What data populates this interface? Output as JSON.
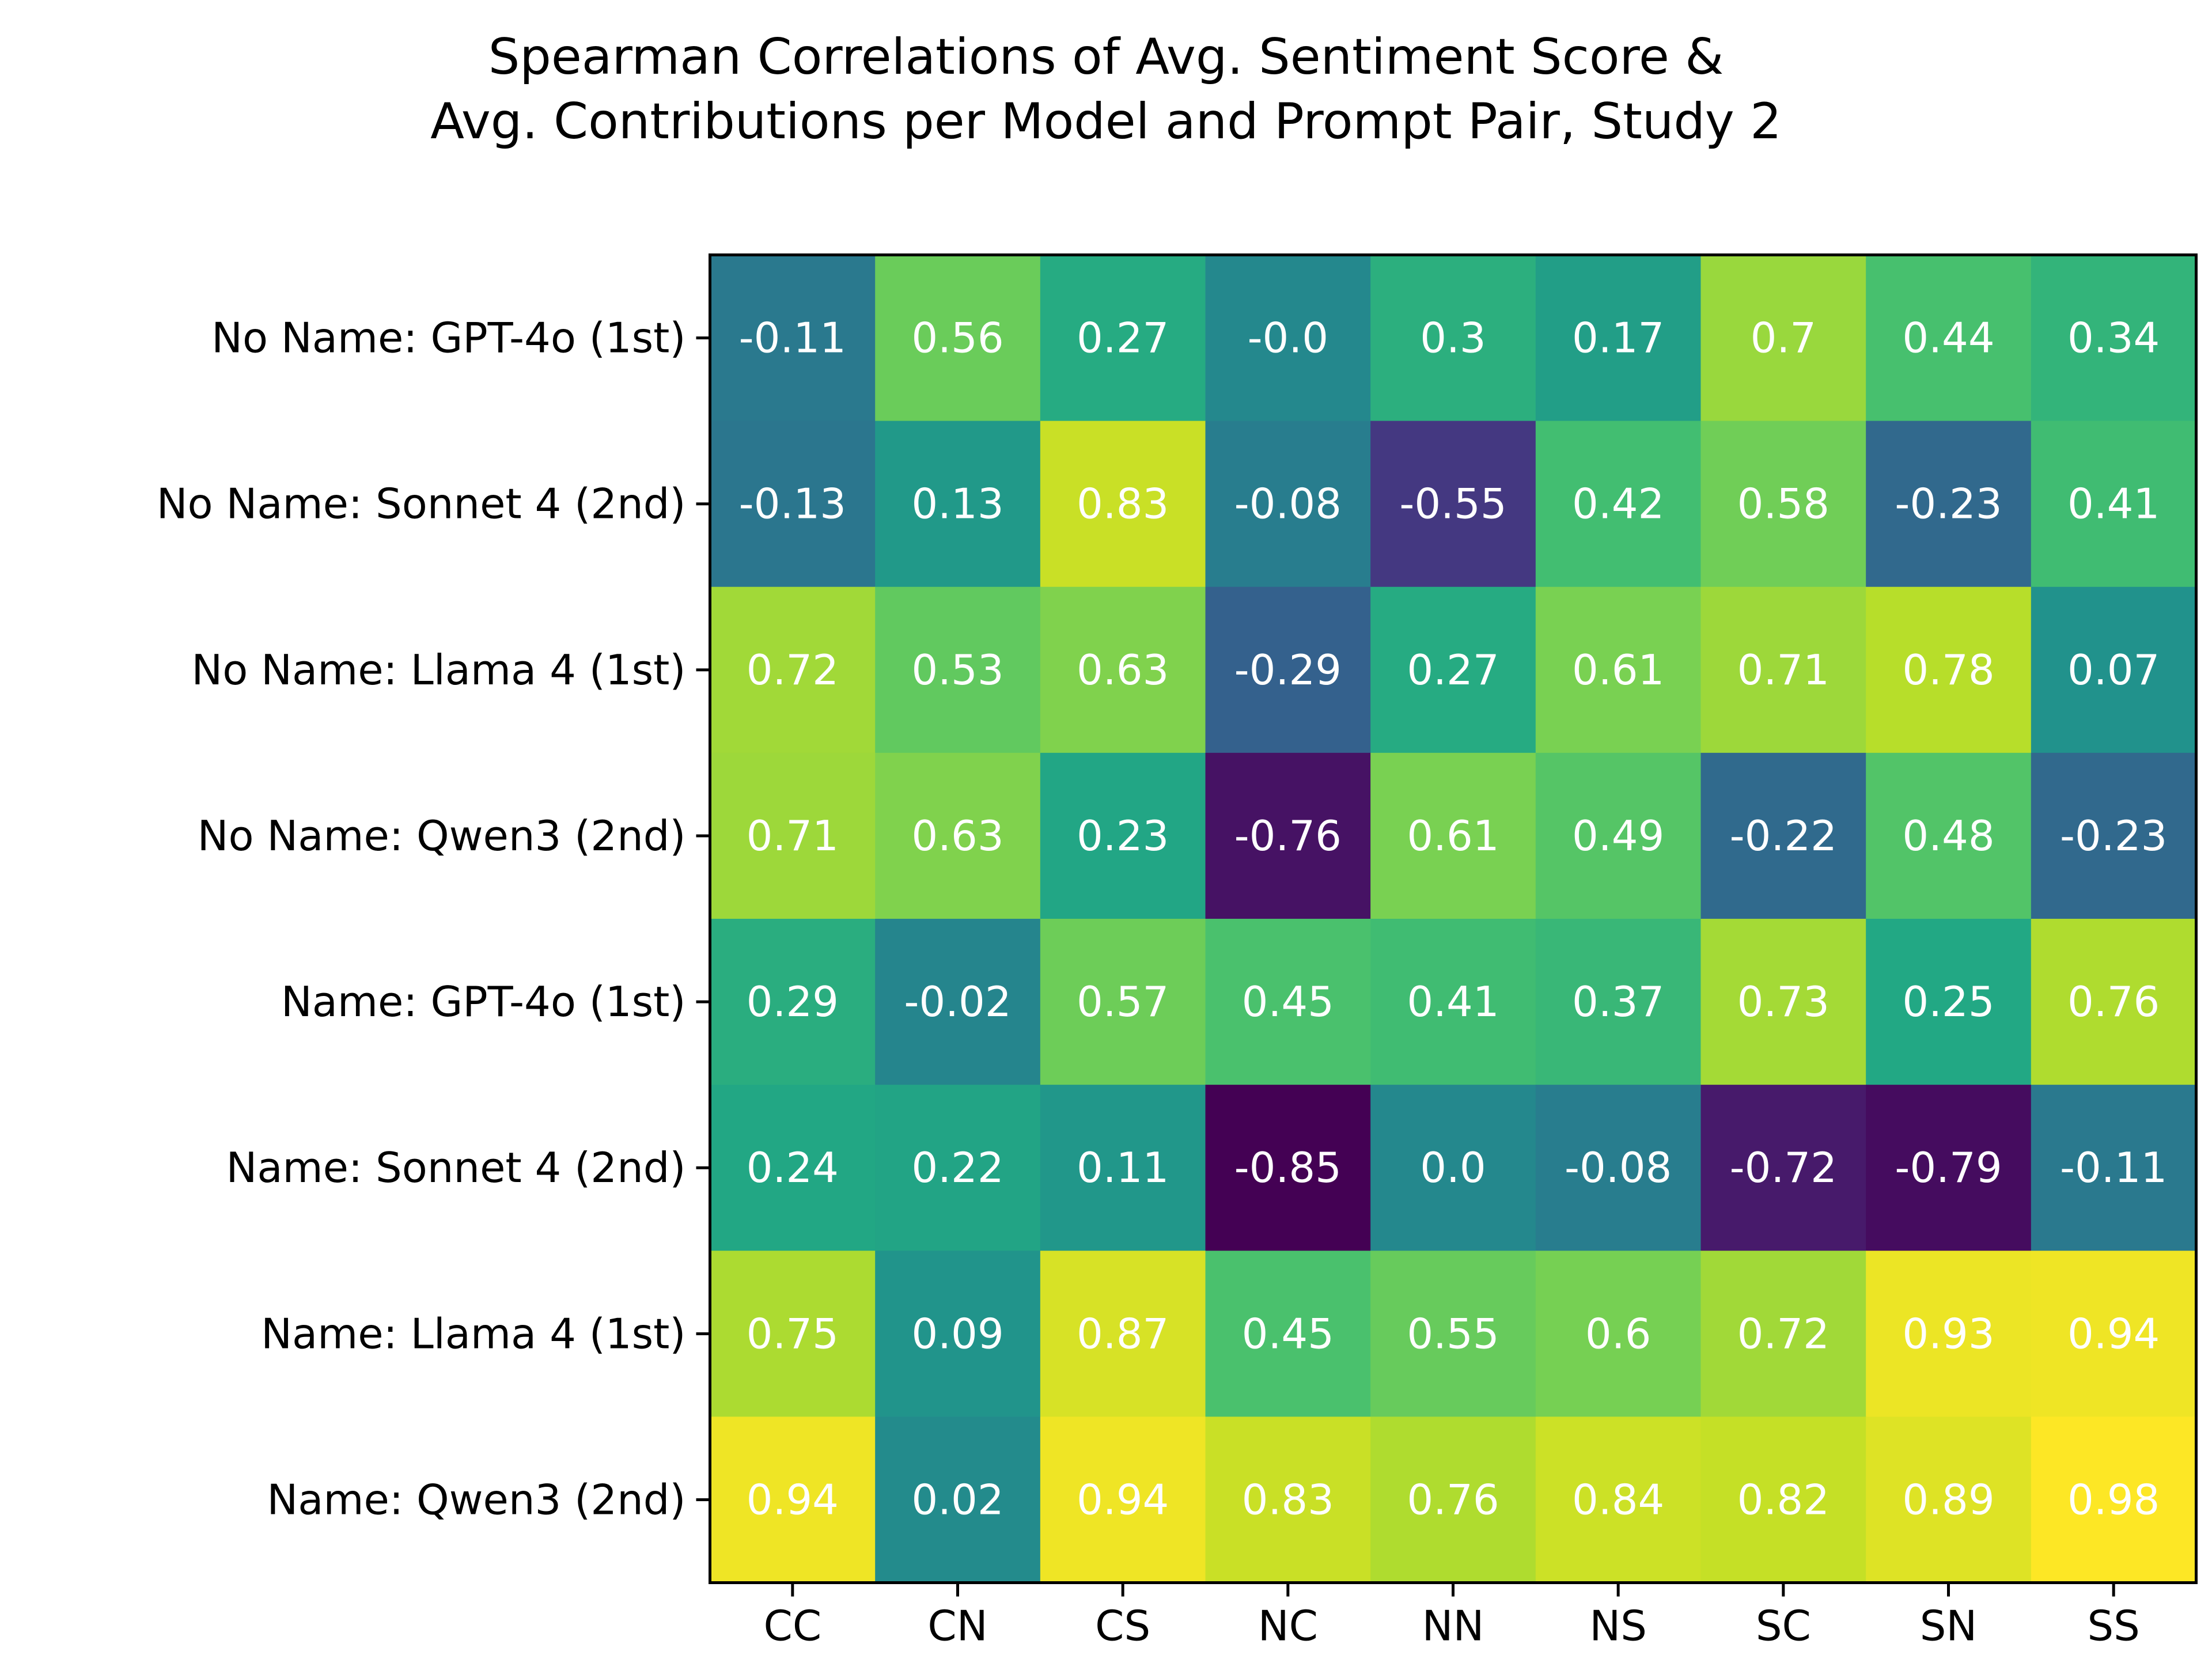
{
  "chart_data": {
    "type": "heatmap",
    "title": "Spearman Correlations of Avg. Sentiment Score &",
    "subtitle": "Avg. Contributions per Model and Prompt Pair, Study 2",
    "xlabel": "",
    "ylabel": "",
    "x_categories": [
      "CC",
      "CN",
      "CS",
      "NC",
      "NN",
      "NS",
      "SC",
      "SN",
      "SS"
    ],
    "y_categories": [
      "No Name: GPT-4o (1st)",
      "No Name: Sonnet 4 (2nd)",
      "No Name: Llama 4 (1st)",
      "No Name: Qwen3 (2nd)",
      "Name: GPT-4o (1st)",
      "Name: Sonnet 4 (2nd)",
      "Name: Llama 4 (1st)",
      "Name: Qwen3 (2nd)"
    ],
    "value_labels": [
      [
        "-0.11",
        "0.56",
        "0.27",
        "-0.0",
        "0.3",
        "0.17",
        "0.7",
        "0.44",
        "0.34"
      ],
      [
        "-0.13",
        "0.13",
        "0.83",
        "-0.08",
        "-0.55",
        "0.42",
        "0.58",
        "-0.23",
        "0.41"
      ],
      [
        "0.72",
        "0.53",
        "0.63",
        "-0.29",
        "0.27",
        "0.61",
        "0.71",
        "0.78",
        "0.07"
      ],
      [
        "0.71",
        "0.63",
        "0.23",
        "-0.76",
        "0.61",
        "0.49",
        "-0.22",
        "0.48",
        "-0.23"
      ],
      [
        "0.29",
        "-0.02",
        "0.57",
        "0.45",
        "0.41",
        "0.37",
        "0.73",
        "0.25",
        "0.76"
      ],
      [
        "0.24",
        "0.22",
        "0.11",
        "-0.85",
        "0.0",
        "-0.08",
        "-0.72",
        "-0.79",
        "-0.11"
      ],
      [
        "0.75",
        "0.09",
        "0.87",
        "0.45",
        "0.55",
        "0.6",
        "0.72",
        "0.93",
        "0.94"
      ],
      [
        "0.94",
        "0.02",
        "0.94",
        "0.83",
        "0.76",
        "0.84",
        "0.82",
        "0.89",
        "0.98"
      ]
    ],
    "colormap": "viridis",
    "value_range": [
      -0.85,
      0.98
    ],
    "colorbar": false,
    "grid": false,
    "value_label_color": "#ffffff"
  }
}
